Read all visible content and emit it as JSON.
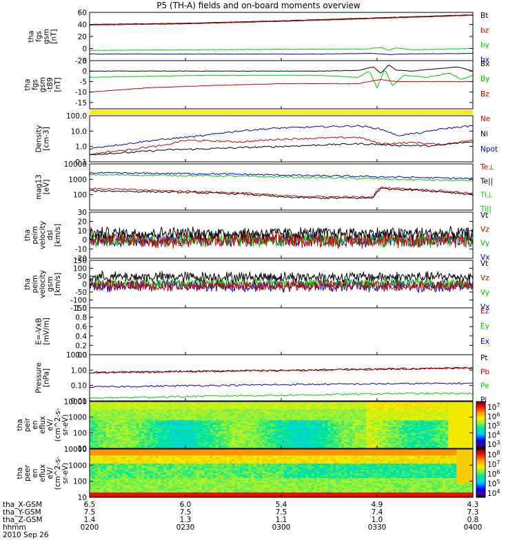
{
  "title": "P5 (TH-A) fields and on-board moments overview",
  "chart_data": [
    {
      "type": "line",
      "ylabel": [
        "tha",
        "fgs",
        "gsm",
        "[nT]"
      ],
      "ylim": [
        -20,
        60
      ],
      "yticks": [
        "60",
        "40",
        "20",
        "0",
        "-20"
      ],
      "legend": [
        {
          "name": "Bt",
          "color": "#000000"
        },
        {
          "name": "bz",
          "color": "#cc0000"
        },
        {
          "name": "by",
          "color": "#00cc00"
        },
        {
          "name": "bx",
          "color": "#0000cc"
        }
      ],
      "series": [
        {
          "name": "Bt",
          "color": "#000000",
          "points": [
            [
              0,
              40
            ],
            [
              0.25,
              42
            ],
            [
              0.5,
              46
            ],
            [
              0.75,
              51
            ],
            [
              1,
              56
            ]
          ]
        },
        {
          "name": "bz",
          "color": "#cc0000",
          "points": [
            [
              0,
              39
            ],
            [
              0.25,
              41
            ],
            [
              0.5,
              45
            ],
            [
              0.75,
              50
            ],
            [
              1,
              55
            ]
          ]
        },
        {
          "name": "by",
          "color": "#00cc00",
          "points": [
            [
              0,
              -3
            ],
            [
              0.3,
              -2
            ],
            [
              0.6,
              -1
            ],
            [
              0.72,
              -1
            ],
            [
              0.76,
              2
            ],
            [
              0.78,
              -3
            ],
            [
              0.8,
              1
            ],
            [
              0.84,
              -2
            ],
            [
              1,
              0
            ]
          ]
        },
        {
          "name": "bx",
          "color": "#0000cc",
          "points": [
            [
              0,
              -9
            ],
            [
              0.3,
              -9
            ],
            [
              0.6,
              -9
            ],
            [
              0.74,
              -8
            ],
            [
              0.78,
              -10
            ],
            [
              0.82,
              -9
            ],
            [
              1,
              -8
            ]
          ]
        }
      ]
    },
    {
      "type": "line",
      "ylabel": [
        "tha",
        "fgs",
        "gsm",
        "-t89",
        "[nT]"
      ],
      "ylim": [
        -18,
        5
      ],
      "yticks": [
        "5",
        "0",
        "-5",
        "-10",
        "-15"
      ],
      "legend": [
        {
          "name": "Bx",
          "color": "#000000"
        },
        {
          "name": "By",
          "color": "#00cc00"
        },
        {
          "name": "Bz",
          "color": "#cc0000"
        }
      ],
      "series": [
        {
          "name": "Bx",
          "color": "#000000",
          "points": [
            [
              0,
              0
            ],
            [
              0.3,
              0
            ],
            [
              0.6,
              0
            ],
            [
              0.7,
              0.3
            ],
            [
              0.74,
              2
            ],
            [
              0.76,
              -1
            ],
            [
              0.78,
              3
            ],
            [
              0.8,
              0.5
            ],
            [
              0.84,
              0
            ],
            [
              0.9,
              1
            ],
            [
              0.96,
              2
            ],
            [
              1,
              0
            ]
          ]
        },
        {
          "name": "By",
          "color": "#00cc00",
          "points": [
            [
              0,
              -3
            ],
            [
              0.3,
              -2
            ],
            [
              0.6,
              -2
            ],
            [
              0.7,
              -3
            ],
            [
              0.73,
              0
            ],
            [
              0.75,
              -8
            ],
            [
              0.77,
              1
            ],
            [
              0.79,
              -7
            ],
            [
              0.82,
              -2
            ],
            [
              0.88,
              -3
            ],
            [
              0.94,
              -1
            ],
            [
              0.97,
              -4
            ],
            [
              1,
              -2
            ]
          ]
        },
        {
          "name": "Bz",
          "color": "#cc0000",
          "points": [
            [
              0,
              -10
            ],
            [
              0.15,
              -8
            ],
            [
              0.3,
              -7
            ],
            [
              0.5,
              -6
            ],
            [
              0.7,
              -6
            ],
            [
              0.76,
              -4
            ],
            [
              0.8,
              -5
            ],
            [
              0.9,
              -5
            ],
            [
              1,
              -5
            ]
          ]
        }
      ]
    },
    {
      "type": "line",
      "ylabel": [
        "Density",
        "[cm-3]"
      ],
      "ylim": [
        0.1,
        100
      ],
      "scale": "log",
      "yticks": [
        "100.0",
        "10.0",
        "1.0",
        "0.1"
      ],
      "legend": [
        {
          "name": "Ne",
          "color": "#cc0000"
        },
        {
          "name": "Ni",
          "color": "#000000"
        },
        {
          "name": "Npot",
          "color": "#0000cc"
        }
      ],
      "series": [
        {
          "name": "Ne",
          "color": "#cc0000",
          "points": [
            [
              0,
              0.3
            ],
            [
              0.1,
              0.6
            ],
            [
              0.2,
              1.2
            ],
            [
              0.25,
              2.5
            ],
            [
              0.4,
              2
            ],
            [
              0.5,
              3
            ],
            [
              0.6,
              3.5
            ],
            [
              0.7,
              4
            ],
            [
              0.74,
              2
            ],
            [
              0.76,
              1.5
            ],
            [
              0.85,
              1.8
            ],
            [
              0.92,
              1.3
            ],
            [
              1,
              2.5
            ]
          ]
        },
        {
          "name": "Ni",
          "color": "#000000",
          "points": [
            [
              0,
              0.3
            ],
            [
              0.1,
              0.4
            ],
            [
              0.2,
              0.6
            ],
            [
              0.3,
              0.7
            ],
            [
              0.5,
              1.0
            ],
            [
              0.7,
              1.5
            ],
            [
              0.74,
              1.4
            ],
            [
              0.8,
              1.2
            ],
            [
              0.9,
              1.1
            ],
            [
              1,
              2
            ]
          ]
        },
        {
          "name": "Npot",
          "color": "#0000cc",
          "points": [
            [
              0,
              0.7
            ],
            [
              0.1,
              1.5
            ],
            [
              0.2,
              3
            ],
            [
              0.3,
              5
            ],
            [
              0.35,
              8
            ],
            [
              0.5,
              16
            ],
            [
              0.7,
              22
            ],
            [
              0.75,
              15
            ],
            [
              0.8,
              5
            ],
            [
              0.87,
              8
            ],
            [
              0.93,
              15
            ],
            [
              1,
              22
            ]
          ]
        }
      ]
    },
    {
      "type": "line",
      "ylabel": [
        "mag13",
        "[eV]"
      ],
      "ylim": [
        10,
        10000
      ],
      "scale": "log",
      "yticks": [
        "10000",
        "1000",
        "100"
      ],
      "legend": [
        {
          "name": "Te⊥",
          "color": "#cc0000"
        },
        {
          "name": "Te||",
          "color": "#000000"
        },
        {
          "name": "Ti⊥",
          "color": "#00cc00"
        },
        {
          "name": "Ti||",
          "color": "#00cc00"
        }
      ],
      "series": [
        {
          "name": "Ti||",
          "color": "#00cc00",
          "points": [
            [
              0,
              2000
            ],
            [
              0.3,
              1700
            ],
            [
              0.6,
              1300
            ],
            [
              0.8,
              1000
            ],
            [
              1,
              800
            ]
          ]
        },
        {
          "name": "Ti⊥",
          "color": "#0000cc",
          "points": [
            [
              0,
              2600
            ],
            [
              0.3,
              2300
            ],
            [
              0.6,
              1700
            ],
            [
              0.8,
              1400
            ],
            [
              1,
              1100
            ]
          ]
        },
        {
          "name": "Te||",
          "color": "#000000",
          "points": [
            [
              0,
              180
            ],
            [
              0.2,
              150
            ],
            [
              0.4,
              110
            ],
            [
              0.5,
              70
            ],
            [
              0.6,
              60
            ],
            [
              0.74,
              60
            ],
            [
              0.76,
              250
            ],
            [
              0.85,
              200
            ],
            [
              1,
              100
            ]
          ]
        },
        {
          "name": "Te⊥",
          "color": "#cc0000",
          "points": [
            [
              0,
              250
            ],
            [
              0.2,
              180
            ],
            [
              0.4,
              130
            ],
            [
              0.5,
              85
            ],
            [
              0.6,
              75
            ],
            [
              0.74,
              70
            ],
            [
              0.76,
              300
            ],
            [
              0.85,
              230
            ],
            [
              1,
              120
            ]
          ]
        }
      ]
    },
    {
      "type": "line",
      "ylabel": [
        "tha",
        "peim",
        "velocity",
        "dsl",
        "[km/s]"
      ],
      "ylim": [
        -20,
        30
      ],
      "yticks": [
        "30",
        "20",
        "10",
        "0",
        "-10",
        "-20"
      ],
      "legend": [
        {
          "name": "Vt",
          "color": "#000000"
        },
        {
          "name": "Vz",
          "color": "#cc0000"
        },
        {
          "name": "Vy",
          "color": "#00cc00"
        },
        {
          "name": "Vx",
          "color": "#0000cc"
        }
      ],
      "noise": [
        {
          "name": "Vx",
          "color": "#0000cc",
          "base": 0,
          "amp": 9
        },
        {
          "name": "Vy",
          "color": "#00cc00",
          "base": 0,
          "amp": 9
        },
        {
          "name": "Vz",
          "color": "#cc0000",
          "base": 0,
          "amp": 10
        },
        {
          "name": "Vt",
          "color": "#000000",
          "base": 7,
          "amp": 8
        }
      ]
    },
    {
      "type": "line",
      "ylabel": [
        "tha",
        "peim",
        "velocity",
        "gsm",
        "[km/s]"
      ],
      "ylim": [
        -150,
        150
      ],
      "yticks": [
        "150",
        "100",
        "50",
        "0",
        "-50",
        "-100",
        "-150"
      ],
      "legend": [
        {
          "name": "Vt",
          "color": "#000000"
        },
        {
          "name": "Vz",
          "color": "#cc0000"
        },
        {
          "name": "Vy",
          "color": "#00cc00"
        },
        {
          "name": "Vx",
          "color": "#0000cc"
        }
      ],
      "noise": [
        {
          "name": "Vx",
          "color": "#0000cc",
          "base": -10,
          "amp": 45
        },
        {
          "name": "Vy",
          "color": "#00cc00",
          "base": 5,
          "amp": 35
        },
        {
          "name": "Vz",
          "color": "#cc0000",
          "base": -10,
          "amp": 40
        },
        {
          "name": "Vt",
          "color": "#000000",
          "base": 45,
          "amp": 40
        }
      ]
    },
    {
      "type": "line",
      "ylabel": [
        "E=-VxB",
        "[mV/m]"
      ],
      "ylim": [
        0,
        1
      ],
      "yticks": [
        "1.0",
        "0.8",
        "0.6",
        "0.4",
        "0.2",
        "0.0"
      ],
      "legend": [
        {
          "name": "Ez",
          "color": "#cc0000"
        },
        {
          "name": "Ey",
          "color": "#00cc00"
        },
        {
          "name": "Ex",
          "color": "#0000cc"
        }
      ],
      "series": []
    },
    {
      "type": "line",
      "ylabel": [
        "Pressure",
        "[nPa]"
      ],
      "ylim": [
        0.01,
        10
      ],
      "scale": "log",
      "yticks": [
        "10.00",
        "1.00",
        "0.10",
        "0.01"
      ],
      "legend": [
        {
          "name": "Pt",
          "color": "#000000"
        },
        {
          "name": "Pb",
          "color": "#cc0000"
        },
        {
          "name": "Pe",
          "color": "#00cc00"
        },
        {
          "name": "Pi",
          "color": "#0000cc"
        }
      ],
      "series": [
        {
          "name": "Pt",
          "color": "#000000",
          "points": [
            [
              0,
              0.7
            ],
            [
              0.5,
              0.95
            ],
            [
              1,
              1.4
            ]
          ]
        },
        {
          "name": "Pb",
          "color": "#cc0000",
          "points": [
            [
              0,
              0.68
            ],
            [
              0.5,
              0.92
            ],
            [
              1,
              1.35
            ]
          ]
        },
        {
          "name": "Pe",
          "color": "#00cc00",
          "points": [
            [
              0,
              0.015
            ],
            [
              0.3,
              0.02
            ],
            [
              0.6,
              0.025
            ],
            [
              0.8,
              0.03
            ],
            [
              1,
              0.03
            ]
          ]
        },
        {
          "name": "Pi",
          "color": "#0000cc",
          "points": [
            [
              0,
              0.08
            ],
            [
              0.3,
              0.1
            ],
            [
              0.6,
              0.12
            ],
            [
              0.8,
              0.13
            ],
            [
              1,
              0.14
            ]
          ]
        }
      ]
    },
    {
      "type": "heatmap",
      "ylabel": [
        "tha",
        "peir",
        "en",
        "eflux",
        "eV/",
        "(cm^2-s-",
        "sr-eV)"
      ],
      "ylim": [
        10,
        10000
      ],
      "scale": "log",
      "yticks": [
        "10000",
        "1000",
        "100",
        "10"
      ],
      "colorbar": {
        "ticks": [
          "10^7",
          "10^6",
          "10^5",
          "10^4",
          "10^3"
        ]
      }
    },
    {
      "type": "heatmap",
      "ylabel": [
        "tha",
        "peer",
        "en",
        "eflux",
        "eV/",
        "(cm^2-s-",
        "sr-eV)"
      ],
      "ylim": [
        10,
        10000
      ],
      "scale": "log",
      "yticks": [
        "10000",
        "1000",
        "100",
        "10"
      ],
      "colorbar": {
        "ticks": [
          "10^8",
          "10^7",
          "10^6",
          "10^5",
          "10^4"
        ]
      }
    }
  ],
  "footer": {
    "rows": [
      {
        "label": "tha_X-GSM",
        "values": [
          "6.5",
          "6.0",
          "5.4",
          "4.9",
          "4.3"
        ]
      },
      {
        "label": "tha_Y-GSM",
        "values": [
          "7.5",
          "7.5",
          "7.5",
          "7.4",
          "7.3"
        ]
      },
      {
        "label": "tha_Z-GSM",
        "values": [
          "1.4",
          "1.3",
          "1.1",
          "1.0",
          "0.8"
        ]
      },
      {
        "label": "hhmm",
        "values": [
          "0200",
          "0230",
          "0300",
          "0330",
          "0400"
        ]
      }
    ],
    "date": "2010 Sep 26"
  }
}
